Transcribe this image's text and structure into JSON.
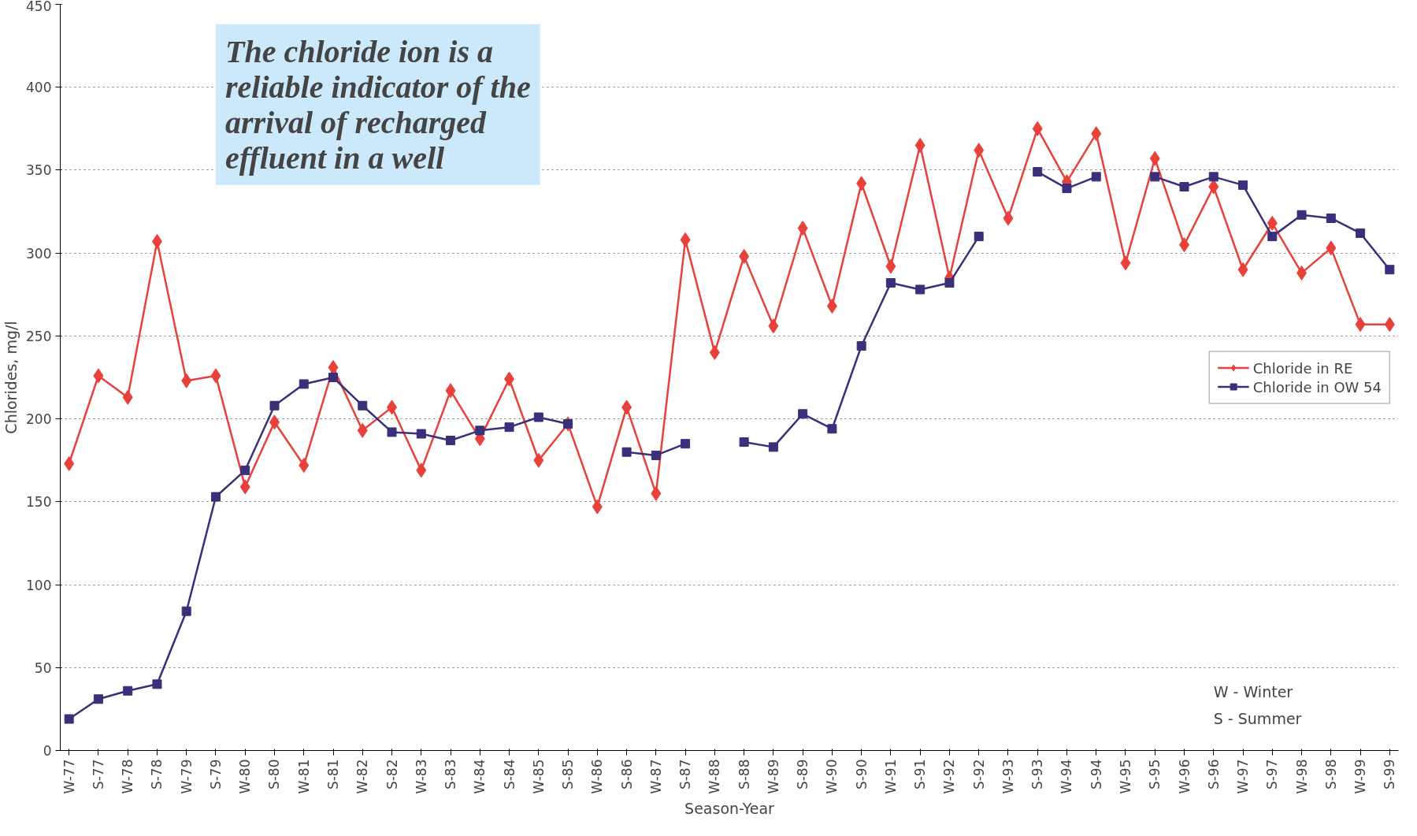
{
  "chart_data": {
    "type": "line",
    "xlabel": "Season-Year",
    "ylabel": "Chlorides, mg/l",
    "categories": [
      "W-77",
      "S-77",
      "W-78",
      "S-78",
      "W-79",
      "S-79",
      "W-80",
      "S-80",
      "W-81",
      "S-81",
      "W-82",
      "S-82",
      "W-83",
      "S-83",
      "W-84",
      "S-84",
      "W-85",
      "S-85",
      "W-86",
      "S-86",
      "W-87",
      "S-87",
      "W-88",
      "S-88",
      "W-89",
      "S-89",
      "W-90",
      "S-90",
      "W-91",
      "S-91",
      "W-92",
      "S-92",
      "W-93",
      "S-93",
      "W-94",
      "S-94",
      "W-95",
      "S-95",
      "W-96",
      "S-96",
      "W-97",
      "S-97",
      "W-98",
      "S-98",
      "W-99",
      "S-99"
    ],
    "series": [
      {
        "name": "Chloride in RE",
        "color": "#e8403a",
        "marker": "diamond",
        "values": [
          173,
          226,
          213,
          307,
          223,
          226,
          159,
          198,
          172,
          231,
          193,
          207,
          169,
          217,
          188,
          224,
          175,
          197,
          147,
          207,
          155,
          308,
          240,
          298,
          256,
          315,
          268,
          342,
          292,
          365,
          285,
          362,
          321,
          375,
          343,
          372,
          294,
          357,
          305,
          340,
          290,
          318,
          288,
          303,
          257,
          257
        ]
      },
      {
        "name": "Chloride in OW 54",
        "color": "#3b2f7a",
        "marker": "square",
        "values": [
          19,
          31,
          36,
          40,
          84,
          153,
          169,
          208,
          221,
          225,
          208,
          192,
          191,
          187,
          193,
          195,
          201,
          197,
          null,
          180,
          178,
          185,
          null,
          186,
          183,
          203,
          194,
          244,
          282,
          278,
          282,
          310,
          null,
          349,
          339,
          346,
          null,
          346,
          340,
          346,
          341,
          310,
          323,
          321,
          312,
          290
        ]
      }
    ],
    "ylim": [
      0,
      450
    ],
    "yticks": [
      0,
      50,
      100,
      150,
      200,
      250,
      300,
      350,
      400,
      450
    ],
    "grid": "y",
    "legend": "right",
    "line_style": "solid",
    "annotations": [
      "The chloride ion is a reliable indicator of the arrival of recharged effluent in a well",
      "W - Winter",
      "S - Summer"
    ]
  }
}
